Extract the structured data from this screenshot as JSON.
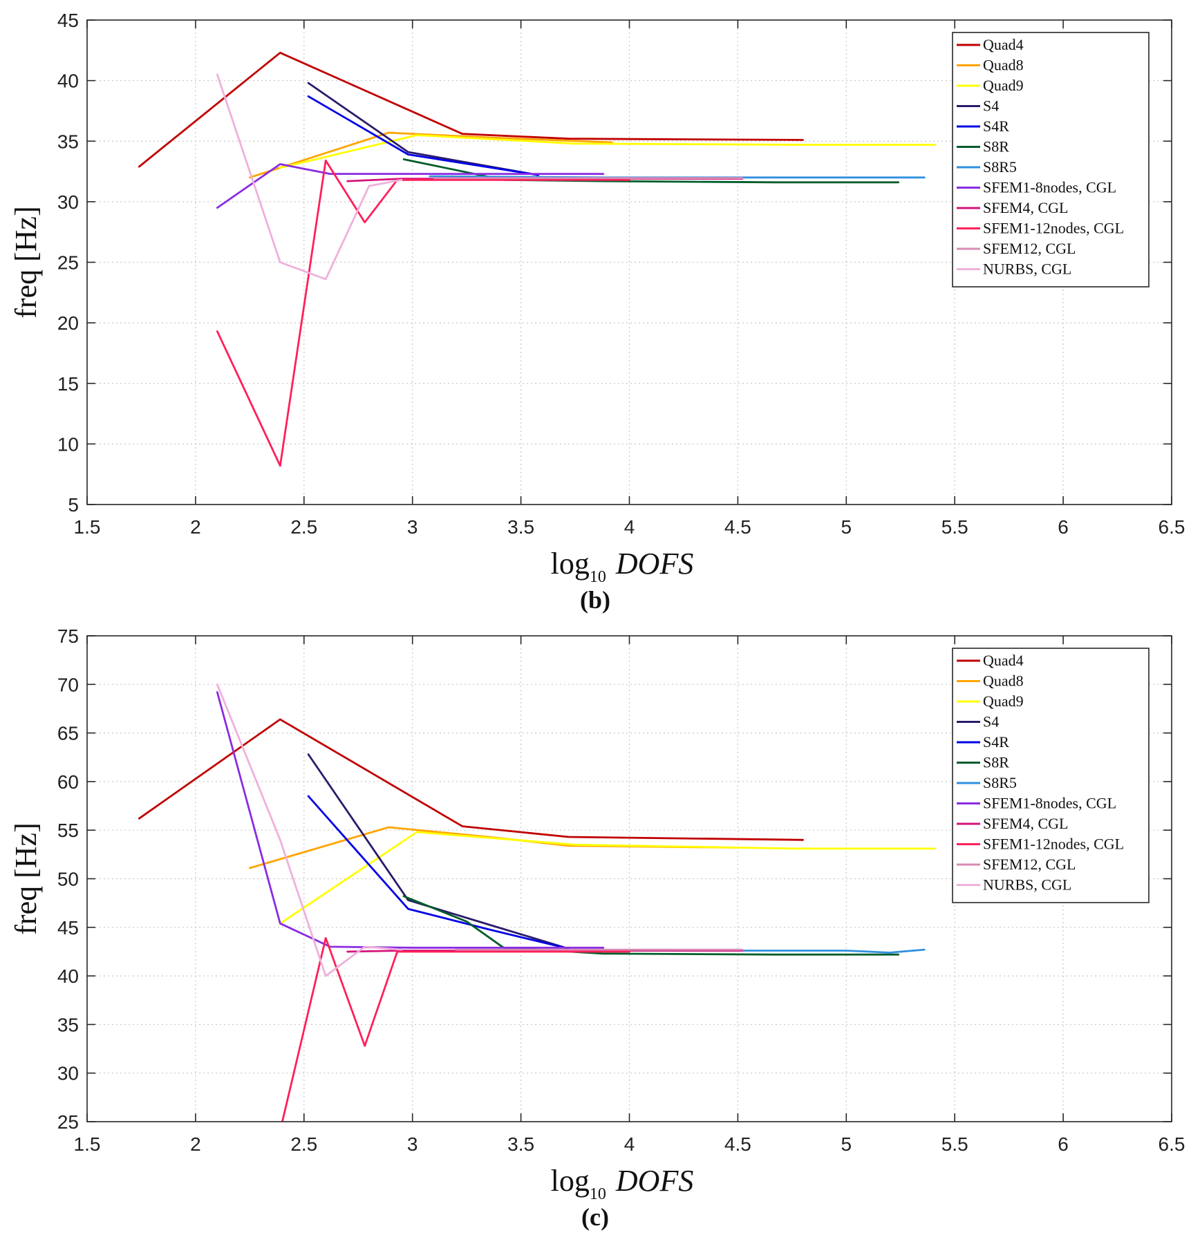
{
  "chart_data": [
    {
      "type": "line",
      "panel_label": "(b)",
      "ylabel": "freq [Hz]",
      "xlabel_main": "log",
      "xlabel_sub": "10",
      "xlabel_var": "DOFS",
      "xlim": [
        1.5,
        6.5
      ],
      "ylim": [
        5,
        45
      ],
      "xticks": [
        "1.5",
        "2",
        "2.5",
        "3",
        "3.5",
        "4",
        "4.5",
        "5",
        "5.5",
        "6",
        "6.5"
      ],
      "yticks": [
        "5",
        "10",
        "15",
        "20",
        "25",
        "30",
        "35",
        "40",
        "45"
      ],
      "grid": true,
      "legend_position": "top-right",
      "series": [
        {
          "name": "Quad4",
          "color": "#c00000",
          "x": [
            1.74,
            2.39,
            3.23,
            3.72,
            4.8
          ],
          "y": [
            32.9,
            42.3,
            35.6,
            35.2,
            35.1
          ]
        },
        {
          "name": "Quad8",
          "color": "#ffa500",
          "x": [
            2.25,
            2.89,
            3.35,
            3.92
          ],
          "y": [
            32.0,
            35.7,
            35.3,
            34.9
          ]
        },
        {
          "name": "Quad9",
          "color": "#ffff00",
          "x": [
            2.39,
            3.02,
            3.75,
            4.77,
            5.41
          ],
          "y": [
            32.8,
            35.5,
            34.8,
            34.7,
            34.7
          ]
        },
        {
          "name": "S4",
          "color": "#2b1a6b",
          "x": [
            2.52,
            2.98,
            3.58
          ],
          "y": [
            39.8,
            34.1,
            32.2
          ]
        },
        {
          "name": "S4R",
          "color": "#0000e6",
          "x": [
            2.52,
            2.98,
            3.58
          ],
          "y": [
            38.7,
            33.9,
            32.2
          ]
        },
        {
          "name": "S8R",
          "color": "#005c2a",
          "x": [
            2.96,
            3.42,
            3.88,
            4.67,
            5.24
          ],
          "y": [
            33.5,
            31.8,
            31.7,
            31.6,
            31.6
          ]
        },
        {
          "name": "S8R5",
          "color": "#2f8fe0",
          "x": [
            3.08,
            3.88,
            4.67,
            5.36
          ],
          "y": [
            32.1,
            32.0,
            32.0,
            32.0
          ]
        },
        {
          "name": "SFEM1-8nodes, CGL",
          "color": "#8a2be2",
          "x": [
            2.1,
            2.39,
            2.62,
            3.0,
            3.5,
            3.88
          ],
          "y": [
            29.5,
            33.1,
            32.3,
            32.3,
            32.3,
            32.3
          ]
        },
        {
          "name": "SFEM4, CGL",
          "color": "#d4147a",
          "x": [
            2.7,
            2.95,
            3.5,
            4.0,
            4.52
          ],
          "y": [
            31.7,
            31.9,
            31.9,
            31.9,
            31.9
          ]
        },
        {
          "name": "SFEM1-12nodes, CGL",
          "color": "#ff1f5a",
          "x": [
            2.1,
            2.39,
            2.6,
            2.78,
            2.93,
            3.5,
            4.0
          ],
          "y": [
            19.3,
            8.2,
            33.4,
            28.3,
            31.8,
            31.8,
            31.8
          ]
        },
        {
          "name": "SFEM12, CGL",
          "color": "#d98bb4",
          "x": [
            3.1,
            3.5,
            4.0,
            4.52
          ],
          "y": [
            31.95,
            31.95,
            31.95,
            31.95
          ]
        },
        {
          "name": "NURBS, CGL",
          "color": "#f0b0dc",
          "x": [
            2.1,
            2.39,
            2.6,
            2.8,
            2.95
          ],
          "y": [
            40.5,
            25.0,
            23.6,
            31.3,
            31.8
          ]
        }
      ]
    },
    {
      "type": "line",
      "panel_label": "(c)",
      "ylabel": "freq [Hz]",
      "xlabel_main": "log",
      "xlabel_sub": "10",
      "xlabel_var": "DOFS",
      "xlim": [
        1.5,
        6.5
      ],
      "ylim": [
        25,
        75
      ],
      "xticks": [
        "1.5",
        "2",
        "2.5",
        "3",
        "3.5",
        "4",
        "4.5",
        "5",
        "5.5",
        "6",
        "6.5"
      ],
      "yticks": [
        "25",
        "30",
        "35",
        "40",
        "45",
        "50",
        "55",
        "60",
        "65",
        "70",
        "75"
      ],
      "grid": true,
      "legend_position": "top-right",
      "series": [
        {
          "name": "Quad4",
          "color": "#c00000",
          "x": [
            1.74,
            2.39,
            3.23,
            3.72,
            4.8
          ],
          "y": [
            56.2,
            66.4,
            55.4,
            54.3,
            54.0
          ]
        },
        {
          "name": "Quad8",
          "color": "#ffa500",
          "x": [
            2.25,
            2.89,
            3.35,
            3.72,
            4.5
          ],
          "y": [
            51.1,
            55.3,
            54.3,
            53.4,
            53.2
          ]
        },
        {
          "name": "Quad9",
          "color": "#ffff00",
          "x": [
            2.39,
            3.02,
            3.75,
            4.77,
            5.41
          ],
          "y": [
            45.4,
            54.8,
            53.5,
            53.1,
            53.1
          ]
        },
        {
          "name": "S4",
          "color": "#2b1a6b",
          "x": [
            2.52,
            2.98,
            3.35,
            3.72
          ],
          "y": [
            62.8,
            47.8,
            45.3,
            42.8
          ]
        },
        {
          "name": "S4R",
          "color": "#0000e6",
          "x": [
            2.52,
            2.98,
            3.35,
            3.72
          ],
          "y": [
            58.5,
            46.9,
            44.8,
            42.8
          ]
        },
        {
          "name": "S8R",
          "color": "#005c2a",
          "x": [
            2.96,
            3.25,
            3.42,
            3.88,
            4.67,
            5.24
          ],
          "y": [
            48.2,
            45.6,
            42.9,
            42.3,
            42.2,
            42.2
          ]
        },
        {
          "name": "S8R5",
          "color": "#2f8fe0",
          "x": [
            3.42,
            3.88,
            4.67,
            5.0,
            5.2,
            5.36
          ],
          "y": [
            42.6,
            42.6,
            42.6,
            42.6,
            42.4,
            42.7
          ]
        },
        {
          "name": "SFEM1-8nodes, CGL",
          "color": "#8a2be2",
          "x": [
            2.1,
            2.39,
            2.62,
            3.0,
            3.5,
            3.88
          ],
          "y": [
            69.2,
            45.4,
            43.0,
            42.9,
            42.9,
            42.9
          ]
        },
        {
          "name": "SFEM4, CGL",
          "color": "#d4147a",
          "x": [
            2.7,
            2.95,
            3.5,
            4.0,
            4.52
          ],
          "y": [
            42.5,
            42.6,
            42.6,
            42.6,
            42.6
          ]
        },
        {
          "name": "SFEM1-12nodes, CGL",
          "color": "#ff1f5a",
          "x": [
            2.4,
            2.6,
            2.78,
            2.93,
            3.5,
            4.0
          ],
          "y": [
            25.0,
            43.9,
            32.8,
            42.5,
            42.5,
            42.5
          ]
        },
        {
          "name": "SFEM12, CGL",
          "color": "#d98bb4",
          "x": [
            3.2,
            3.5,
            4.0,
            4.52
          ],
          "y": [
            42.7,
            42.7,
            42.7,
            42.7
          ]
        },
        {
          "name": "NURBS, CGL",
          "color": "#f0b0dc",
          "x": [
            2.1,
            2.39,
            2.6,
            2.78,
            2.95
          ],
          "y": [
            70.0,
            54.0,
            40.0,
            43.0,
            42.7
          ]
        }
      ]
    }
  ]
}
